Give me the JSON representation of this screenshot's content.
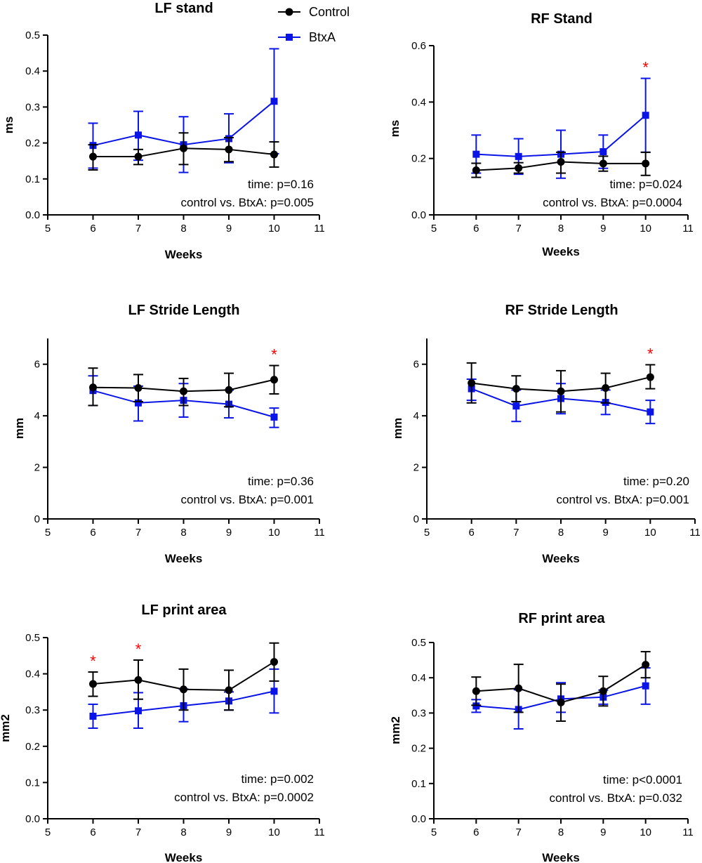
{
  "legend": [
    {
      "name": "Control",
      "color": "#000000",
      "marker": "circle"
    },
    {
      "name": "BtxA",
      "color": "#0a14e6",
      "marker": "square"
    }
  ],
  "chart_data": [
    {
      "type": "line",
      "title": "LF stand",
      "xlabel": "Weeks",
      "ylabel": "ms",
      "xlim": [
        5,
        11
      ],
      "ylim": [
        0,
        0.5
      ],
      "xticks": [
        "5",
        "6",
        "7",
        "8",
        "9",
        "10",
        "11"
      ],
      "yticks": [
        "0.0",
        "0.1",
        "0.2",
        "0.3",
        "0.4",
        "0.5"
      ],
      "ytick_values": [
        0,
        0.1,
        0.2,
        0.3,
        0.4,
        0.5
      ],
      "x": [
        6,
        7,
        8,
        9,
        10
      ],
      "series": [
        {
          "name": "Control",
          "values": [
            0.162,
            0.162,
            0.185,
            0.182,
            0.168
          ],
          "err_low": [
            0.125,
            0.14,
            0.14,
            0.148,
            0.133
          ],
          "err_high": [
            0.195,
            0.182,
            0.228,
            0.215,
            0.203
          ]
        },
        {
          "name": "BtxA",
          "values": [
            0.193,
            0.222,
            0.195,
            0.212,
            0.316
          ],
          "err_low": [
            0.13,
            0.152,
            0.118,
            0.145,
            0.17
          ],
          "err_high": [
            0.255,
            0.288,
            0.273,
            0.281,
            0.462
          ]
        }
      ],
      "stats": [
        "time: p=0.16",
        "control vs. BtxA: p=0.005"
      ],
      "significance_x": []
    },
    {
      "type": "line",
      "title": "RF Stand",
      "xlabel": "Weeks",
      "ylabel": "ms",
      "xlim": [
        5,
        11
      ],
      "ylim": [
        0,
        0.6
      ],
      "xticks": [
        "5",
        "6",
        "7",
        "8",
        "9",
        "10",
        "11"
      ],
      "yticks": [
        "0.0",
        "0.2",
        "0.4",
        "0.6"
      ],
      "ytick_values": [
        0,
        0.2,
        0.4,
        0.6
      ],
      "x": [
        6,
        7,
        8,
        9,
        10
      ],
      "series": [
        {
          "name": "Control",
          "values": [
            0.158,
            0.166,
            0.188,
            0.182,
            0.182
          ],
          "err_low": [
            0.133,
            0.148,
            0.148,
            0.155,
            0.14
          ],
          "err_high": [
            0.183,
            0.185,
            0.222,
            0.208,
            0.222
          ]
        },
        {
          "name": "BtxA",
          "values": [
            0.215,
            0.207,
            0.215,
            0.224,
            0.353
          ],
          "err_low": [
            0.148,
            0.144,
            0.13,
            0.165,
            0.222
          ],
          "err_high": [
            0.283,
            0.27,
            0.3,
            0.283,
            0.484
          ]
        }
      ],
      "stats": [
        "time: p=0.024",
        "control vs. BtxA: p=0.0004"
      ],
      "significance_x": [
        10
      ],
      "significance_symbol": "*"
    },
    {
      "type": "line",
      "title": "LF Stride Length",
      "xlabel": "Weeks",
      "ylabel": "mm",
      "xlim": [
        5,
        11
      ],
      "ylim": [
        0,
        7
      ],
      "xticks": [
        "5",
        "6",
        "7",
        "8",
        "9",
        "10",
        "11"
      ],
      "yticks": [
        "0",
        "2",
        "4",
        "6"
      ],
      "ytick_values": [
        0,
        2,
        4,
        6
      ],
      "x": [
        6,
        7,
        8,
        9,
        10
      ],
      "series": [
        {
          "name": "Control",
          "values": [
            5.1,
            5.08,
            4.95,
            5.0,
            5.4
          ],
          "err_low": [
            4.4,
            4.55,
            4.4,
            4.35,
            4.85
          ],
          "err_high": [
            5.85,
            5.6,
            5.45,
            5.65,
            5.95
          ]
        },
        {
          "name": "BtxA",
          "values": [
            4.98,
            4.5,
            4.6,
            4.45,
            3.95
          ],
          "err_low": [
            4.4,
            3.8,
            3.95,
            3.92,
            3.55
          ],
          "err_high": [
            5.55,
            5.15,
            5.25,
            5.0,
            4.3
          ]
        }
      ],
      "stats": [
        "time: p=0.36",
        "control vs. BtxA: p=0.001"
      ],
      "significance_x": [
        10
      ],
      "significance_symbol": "*"
    },
    {
      "type": "line",
      "title": "RF Stride Length",
      "xlabel": "Weeks",
      "ylabel": "mm",
      "xlim": [
        5,
        11
      ],
      "ylim": [
        0,
        7
      ],
      "xticks": [
        "5",
        "6",
        "7",
        "8",
        "9",
        "10",
        "11"
      ],
      "yticks": [
        "0",
        "2",
        "4",
        "6"
      ],
      "ytick_values": [
        0,
        2,
        4,
        6
      ],
      "x": [
        6,
        7,
        8,
        9,
        10
      ],
      "series": [
        {
          "name": "Control",
          "values": [
            5.27,
            5.05,
            4.95,
            5.08,
            5.5
          ],
          "err_low": [
            4.5,
            4.55,
            4.15,
            4.5,
            5.05
          ],
          "err_high": [
            6.05,
            5.55,
            5.75,
            5.65,
            5.98
          ]
        },
        {
          "name": "BtxA",
          "values": [
            5.05,
            4.38,
            4.67,
            4.52,
            4.15
          ],
          "err_low": [
            4.6,
            3.78,
            4.08,
            4.05,
            3.7
          ],
          "err_high": [
            5.42,
            5.0,
            5.25,
            5.0,
            4.6
          ]
        }
      ],
      "stats": [
        "time: p=0.20",
        "control vs. BtxA: p=0.001"
      ],
      "significance_x": [
        10
      ],
      "significance_symbol": "*"
    },
    {
      "type": "line",
      "title": "LF print area",
      "xlabel": "Weeks",
      "ylabel": "mm2",
      "xlim": [
        5,
        11
      ],
      "ylim": [
        0,
        0.5
      ],
      "xticks": [
        "5",
        "6",
        "7",
        "8",
        "9",
        "10",
        "11"
      ],
      "yticks": [
        "0.0",
        "0.1",
        "0.2",
        "0.3",
        "0.4",
        "0.5"
      ],
      "ytick_values": [
        0,
        0.1,
        0.2,
        0.3,
        0.4,
        0.5
      ],
      "x": [
        6,
        7,
        8,
        9,
        10
      ],
      "series": [
        {
          "name": "Control",
          "values": [
            0.372,
            0.383,
            0.357,
            0.355,
            0.433
          ],
          "err_low": [
            0.338,
            0.33,
            0.3,
            0.3,
            0.38
          ],
          "err_high": [
            0.405,
            0.438,
            0.413,
            0.41,
            0.485
          ]
        },
        {
          "name": "BtxA",
          "values": [
            0.283,
            0.298,
            0.312,
            0.325,
            0.352
          ],
          "err_low": [
            0.25,
            0.25,
            0.268,
            0.3,
            0.292
          ],
          "err_high": [
            0.316,
            0.348,
            0.358,
            0.35,
            0.413
          ]
        }
      ],
      "stats": [
        "time: p=0.002",
        "control vs. BtxA: p=0.0002"
      ],
      "significance_x": [
        6,
        7
      ],
      "significance_symbol": "*"
    },
    {
      "type": "line",
      "title": "RF print area",
      "xlabel": "Weeks",
      "ylabel": "mm2",
      "xlim": [
        5,
        11
      ],
      "ylim": [
        0,
        0.5
      ],
      "xticks": [
        "5",
        "6",
        "7",
        "8",
        "9",
        "10",
        "11"
      ],
      "yticks": [
        "0.0",
        "0.1",
        "0.2",
        "0.3",
        "0.4",
        "0.5"
      ],
      "ytick_values": [
        0,
        0.1,
        0.2,
        0.3,
        0.4,
        0.5
      ],
      "x": [
        6,
        7,
        8,
        9,
        10
      ],
      "series": [
        {
          "name": "Control",
          "values": [
            0.362,
            0.37,
            0.33,
            0.362,
            0.437
          ],
          "err_low": [
            0.322,
            0.302,
            0.277,
            0.32,
            0.4
          ],
          "err_high": [
            0.402,
            0.438,
            0.382,
            0.404,
            0.474
          ]
        },
        {
          "name": "BtxA",
          "values": [
            0.32,
            0.31,
            0.34,
            0.345,
            0.377
          ],
          "err_low": [
            0.302,
            0.255,
            0.302,
            0.325,
            0.325
          ],
          "err_high": [
            0.338,
            0.366,
            0.386,
            0.365,
            0.428
          ]
        }
      ],
      "stats": [
        "time: p<0.0001",
        "control vs. BtxA: p=0.032"
      ],
      "significance_x": []
    }
  ]
}
